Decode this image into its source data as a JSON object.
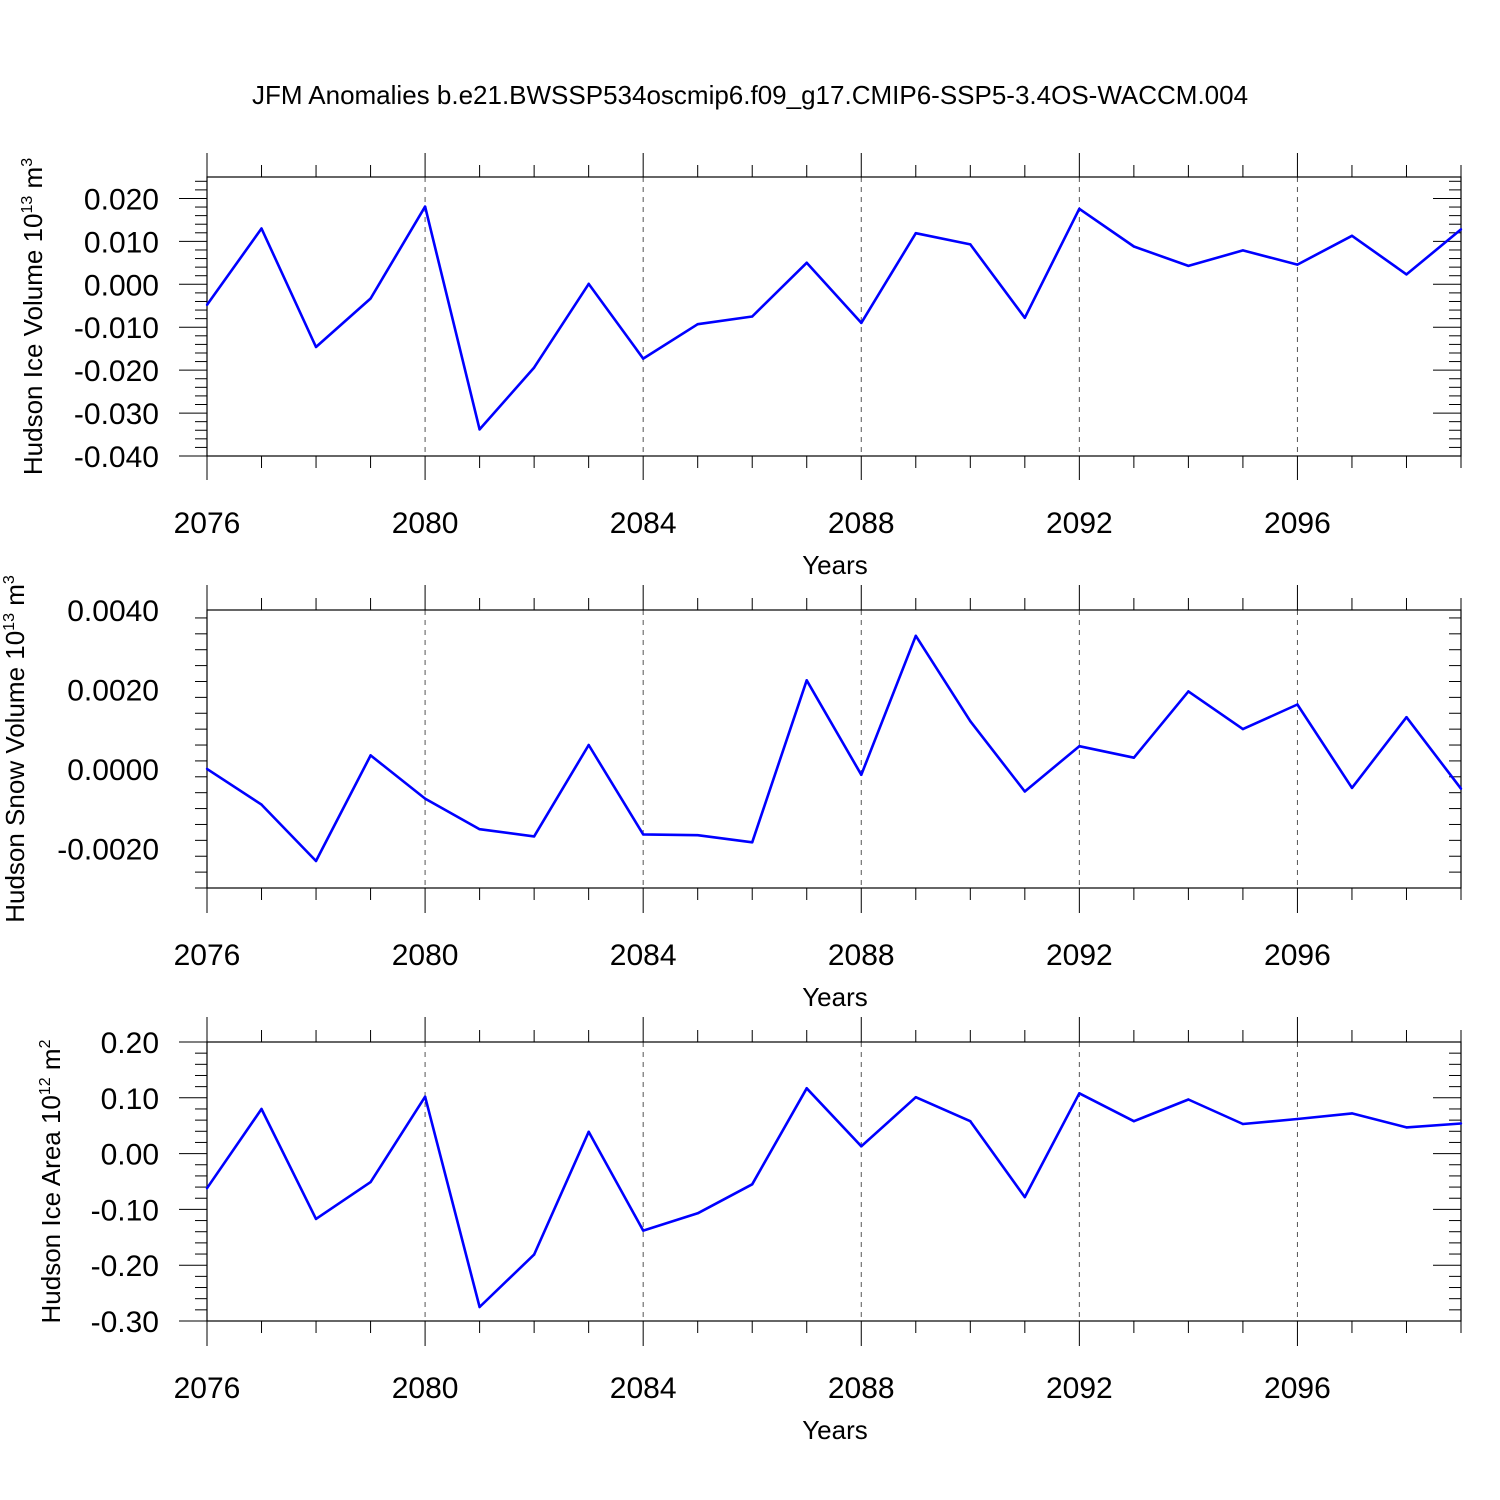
{
  "title": "JFM Anomalies b.e21.BWSSP534oscmip6.f09_g17.CMIP6-SSP5-3.4OS-WACCM.004",
  "line_color": "#0000ff",
  "chart_data": [
    {
      "type": "line",
      "xlabel": "Years",
      "ylabel_main": "Hudson Ice Volume 10",
      "ylabel_exp": "13",
      "ylabel_unit": " m",
      "ylabel_unit_exp": "3",
      "xlim": [
        2076,
        2099
      ],
      "ylim": [
        -0.04,
        0.025
      ],
      "x_ticks": [
        2076,
        2080,
        2084,
        2088,
        2092,
        2096
      ],
      "y_ticks": [
        -0.04,
        -0.03,
        -0.02,
        -0.01,
        0.0,
        0.01,
        0.02
      ],
      "y_tick_labels": [
        "-0.040",
        "-0.030",
        "-0.020",
        "-0.010",
        "0.000",
        "0.010",
        "0.020"
      ],
      "x": [
        2076,
        2077,
        2078,
        2079,
        2080,
        2081,
        2082,
        2083,
        2084,
        2085,
        2086,
        2087,
        2088,
        2089,
        2090,
        2091,
        2092,
        2093,
        2094,
        2095,
        2096,
        2097,
        2098,
        2099
      ],
      "values": [
        -0.0048,
        0.013,
        -0.0146,
        -0.0033,
        0.0181,
        -0.0338,
        -0.0194,
        0.0001,
        -0.0173,
        -0.0093,
        -0.0075,
        0.005,
        -0.009,
        0.0119,
        0.0093,
        -0.0078,
        0.0176,
        0.0088,
        0.0043,
        0.0079,
        0.0046,
        0.0113,
        0.0023,
        0.0128
      ]
    },
    {
      "type": "line",
      "xlabel": "Years",
      "ylabel_main": "Hudson Snow Volume 10",
      "ylabel_exp": "13",
      "ylabel_unit": " m",
      "ylabel_unit_exp": "3",
      "xlim": [
        2076,
        2099
      ],
      "ylim": [
        -0.003,
        0.004
      ],
      "x_ticks": [
        2076,
        2080,
        2084,
        2088,
        2092,
        2096
      ],
      "y_ticks": [
        -0.002,
        0.0,
        0.002,
        0.004
      ],
      "y_tick_labels": [
        "-0.0020",
        "0.0000",
        "0.0020",
        "0.0040"
      ],
      "x": [
        2076,
        2077,
        2078,
        2079,
        2080,
        2081,
        2082,
        2083,
        2084,
        2085,
        2086,
        2087,
        2088,
        2089,
        2090,
        2091,
        2092,
        2093,
        2094,
        2095,
        2096,
        2097,
        2098,
        2099
      ],
      "values": [
        0.0,
        -0.0009,
        -0.00232,
        0.00034,
        -0.00075,
        -0.00152,
        -0.0017,
        0.0006,
        -0.00165,
        -0.00167,
        -0.00185,
        0.00223,
        -0.00015,
        0.00335,
        0.0012,
        -0.00057,
        0.00057,
        0.00028,
        0.00195,
        0.001,
        0.00162,
        -0.00048,
        0.0013,
        -0.0005
      ]
    },
    {
      "type": "line",
      "xlabel": "Years",
      "ylabel_main": "Hudson Ice Area 10",
      "ylabel_exp": "12",
      "ylabel_unit": " m",
      "ylabel_unit_exp": "2",
      "xlim": [
        2076,
        2099
      ],
      "ylim": [
        -0.3,
        0.2
      ],
      "x_ticks": [
        2076,
        2080,
        2084,
        2088,
        2092,
        2096
      ],
      "y_ticks": [
        -0.3,
        -0.2,
        -0.1,
        0.0,
        0.1,
        0.2
      ],
      "y_tick_labels": [
        "-0.30",
        "-0.20",
        "-0.10",
        "0.00",
        "0.10",
        "0.20"
      ],
      "x": [
        2076,
        2077,
        2078,
        2079,
        2080,
        2081,
        2082,
        2083,
        2084,
        2085,
        2086,
        2087,
        2088,
        2089,
        2090,
        2091,
        2092,
        2093,
        2094,
        2095,
        2096,
        2097,
        2098,
        2099
      ],
      "values": [
        -0.062,
        0.08,
        -0.117,
        -0.051,
        0.102,
        -0.275,
        -0.181,
        0.039,
        -0.138,
        -0.107,
        -0.055,
        0.117,
        0.013,
        0.101,
        0.058,
        -0.078,
        0.108,
        0.058,
        0.097,
        0.053,
        0.062,
        0.072,
        0.047,
        0.054
      ]
    }
  ]
}
